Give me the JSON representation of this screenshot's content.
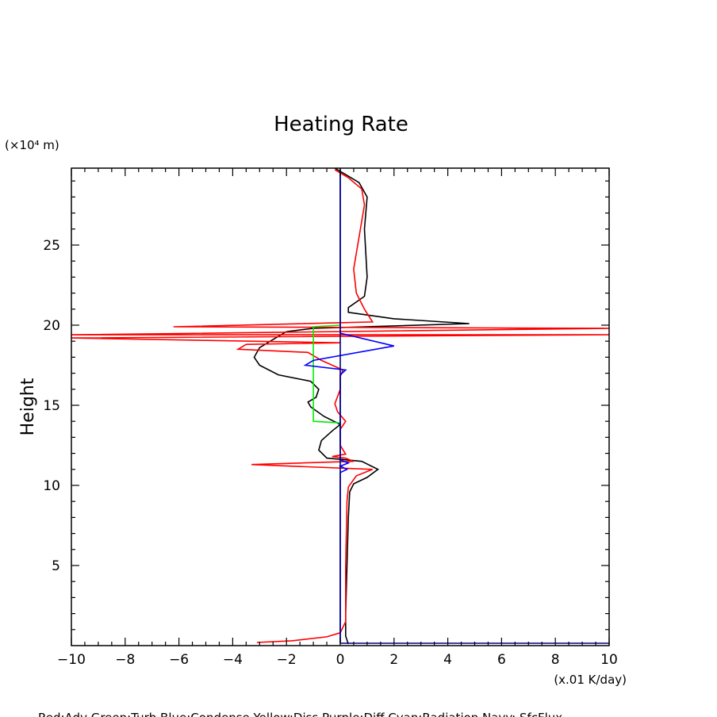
{
  "chart_data": {
    "type": "line",
    "title": "Heating Rate",
    "ylabel": "Height",
    "y_unit_label": "(×10⁴ m)",
    "x_unit_label": "(x.01 K/day)",
    "xlim": [
      -10,
      10
    ],
    "ylim": [
      0,
      29.8
    ],
    "x_ticks": [
      "−10",
      "−8",
      "−6",
      "−4",
      "−2",
      "0",
      "2",
      "4",
      "6",
      "8",
      "10"
    ],
    "y_ticks": [
      "5",
      "10",
      "15",
      "20",
      "25"
    ],
    "grid": false,
    "legend_text": "Red:Adv  Green:Turb  Blue:Condense  Yellow:Diss  Purple:Diff  Cyan:Radiation  Navy: SfcFlux",
    "series": [
      {
        "color": "#000000",
        "points": [
          [
            0.3,
            0.1
          ],
          [
            0.2,
            0.6
          ],
          [
            0.2,
            2
          ],
          [
            0.25,
            5
          ],
          [
            0.3,
            8
          ],
          [
            0.35,
            9.6
          ],
          [
            0.5,
            10.1
          ],
          [
            1.0,
            10.5
          ],
          [
            1.4,
            11.0
          ],
          [
            0.8,
            11.5
          ],
          [
            0.2,
            11.6
          ],
          [
            -0.5,
            11.7
          ],
          [
            -0.8,
            12.2
          ],
          [
            -0.7,
            12.8
          ],
          [
            -0.3,
            13.4
          ],
          [
            0.0,
            13.8
          ],
          [
            -0.6,
            14.3
          ],
          [
            -1.1,
            14.9
          ],
          [
            -1.2,
            15.2
          ],
          [
            -0.9,
            15.5
          ],
          [
            -0.8,
            16.0
          ],
          [
            -1.1,
            16.5
          ],
          [
            -2.3,
            16.9
          ],
          [
            -3.0,
            17.5
          ],
          [
            -3.2,
            18.0
          ],
          [
            -3.0,
            18.6
          ],
          [
            -2.4,
            19.2
          ],
          [
            -2.0,
            19.6
          ],
          [
            -1.0,
            19.8
          ],
          [
            4.8,
            20.1
          ],
          [
            2.0,
            20.4
          ],
          [
            0.3,
            20.8
          ],
          [
            0.3,
            21.1
          ],
          [
            0.9,
            21.8
          ],
          [
            1.0,
            23
          ],
          [
            0.9,
            26
          ],
          [
            1.0,
            28
          ],
          [
            0.7,
            28.9
          ],
          [
            0.2,
            29.4
          ],
          [
            -0.2,
            29.8
          ]
        ]
      },
      {
        "color": "#ff0000",
        "points": [
          [
            -3.1,
            0.2
          ],
          [
            -1.8,
            0.3
          ],
          [
            -0.5,
            0.55
          ],
          [
            0.0,
            0.8
          ],
          [
            0.2,
            1.5
          ],
          [
            0.2,
            5
          ],
          [
            0.25,
            9.0
          ],
          [
            0.3,
            9.9
          ],
          [
            0.6,
            10.6
          ],
          [
            1.2,
            11.0
          ],
          [
            -3.3,
            11.3
          ],
          [
            0.5,
            11.5
          ],
          [
            0.2,
            11.7
          ],
          [
            -0.3,
            11.8
          ],
          [
            0.2,
            11.95
          ],
          [
            0.0,
            12.5
          ],
          [
            0.0,
            13.5
          ],
          [
            0.2,
            14.0
          ],
          [
            -0.1,
            14.6
          ],
          [
            -0.2,
            15.1
          ],
          [
            0.0,
            16
          ],
          [
            0.0,
            16.8
          ],
          [
            0.1,
            17.2
          ],
          [
            -0.7,
            17.8
          ],
          [
            -1.2,
            18.3
          ],
          [
            -3.8,
            18.5
          ],
          [
            -3.5,
            18.8
          ],
          [
            0.0,
            18.9
          ],
          [
            -10,
            19.2
          ],
          [
            10,
            19.4
          ],
          [
            -10,
            19.4
          ],
          [
            10,
            19.8
          ],
          [
            -6.2,
            19.9
          ],
          [
            1.2,
            20.2
          ],
          [
            0.9,
            21.0
          ],
          [
            0.6,
            22.0
          ],
          [
            0.5,
            23.5
          ],
          [
            0.7,
            25.5
          ],
          [
            0.9,
            27.5
          ],
          [
            0.8,
            28.5
          ],
          [
            0.3,
            29.2
          ],
          [
            -0.2,
            29.7
          ]
        ]
      },
      {
        "color": "#00ee00",
        "points": [
          [
            0,
            13.9
          ],
          [
            -1.0,
            14.0
          ],
          [
            -1.0,
            19.9
          ],
          [
            0,
            20.0
          ]
        ]
      },
      {
        "color": "#0000ff",
        "points": [
          [
            0,
            0.2
          ],
          [
            0,
            10.8
          ],
          [
            0.25,
            11.0
          ],
          [
            0,
            11.2
          ],
          [
            0.3,
            11.4
          ],
          [
            0,
            11.6
          ],
          [
            0,
            16.9
          ],
          [
            0.2,
            17.2
          ],
          [
            -1.3,
            17.5
          ],
          [
            -1.0,
            17.8
          ],
          [
            2.0,
            18.7
          ],
          [
            0,
            19.5
          ],
          [
            0,
            29.6
          ]
        ]
      },
      {
        "color": "#000080",
        "points": [
          [
            0,
            0.15
          ],
          [
            10,
            0.15
          ],
          [
            0,
            0.15
          ],
          [
            0,
            29.8
          ]
        ]
      }
    ]
  }
}
